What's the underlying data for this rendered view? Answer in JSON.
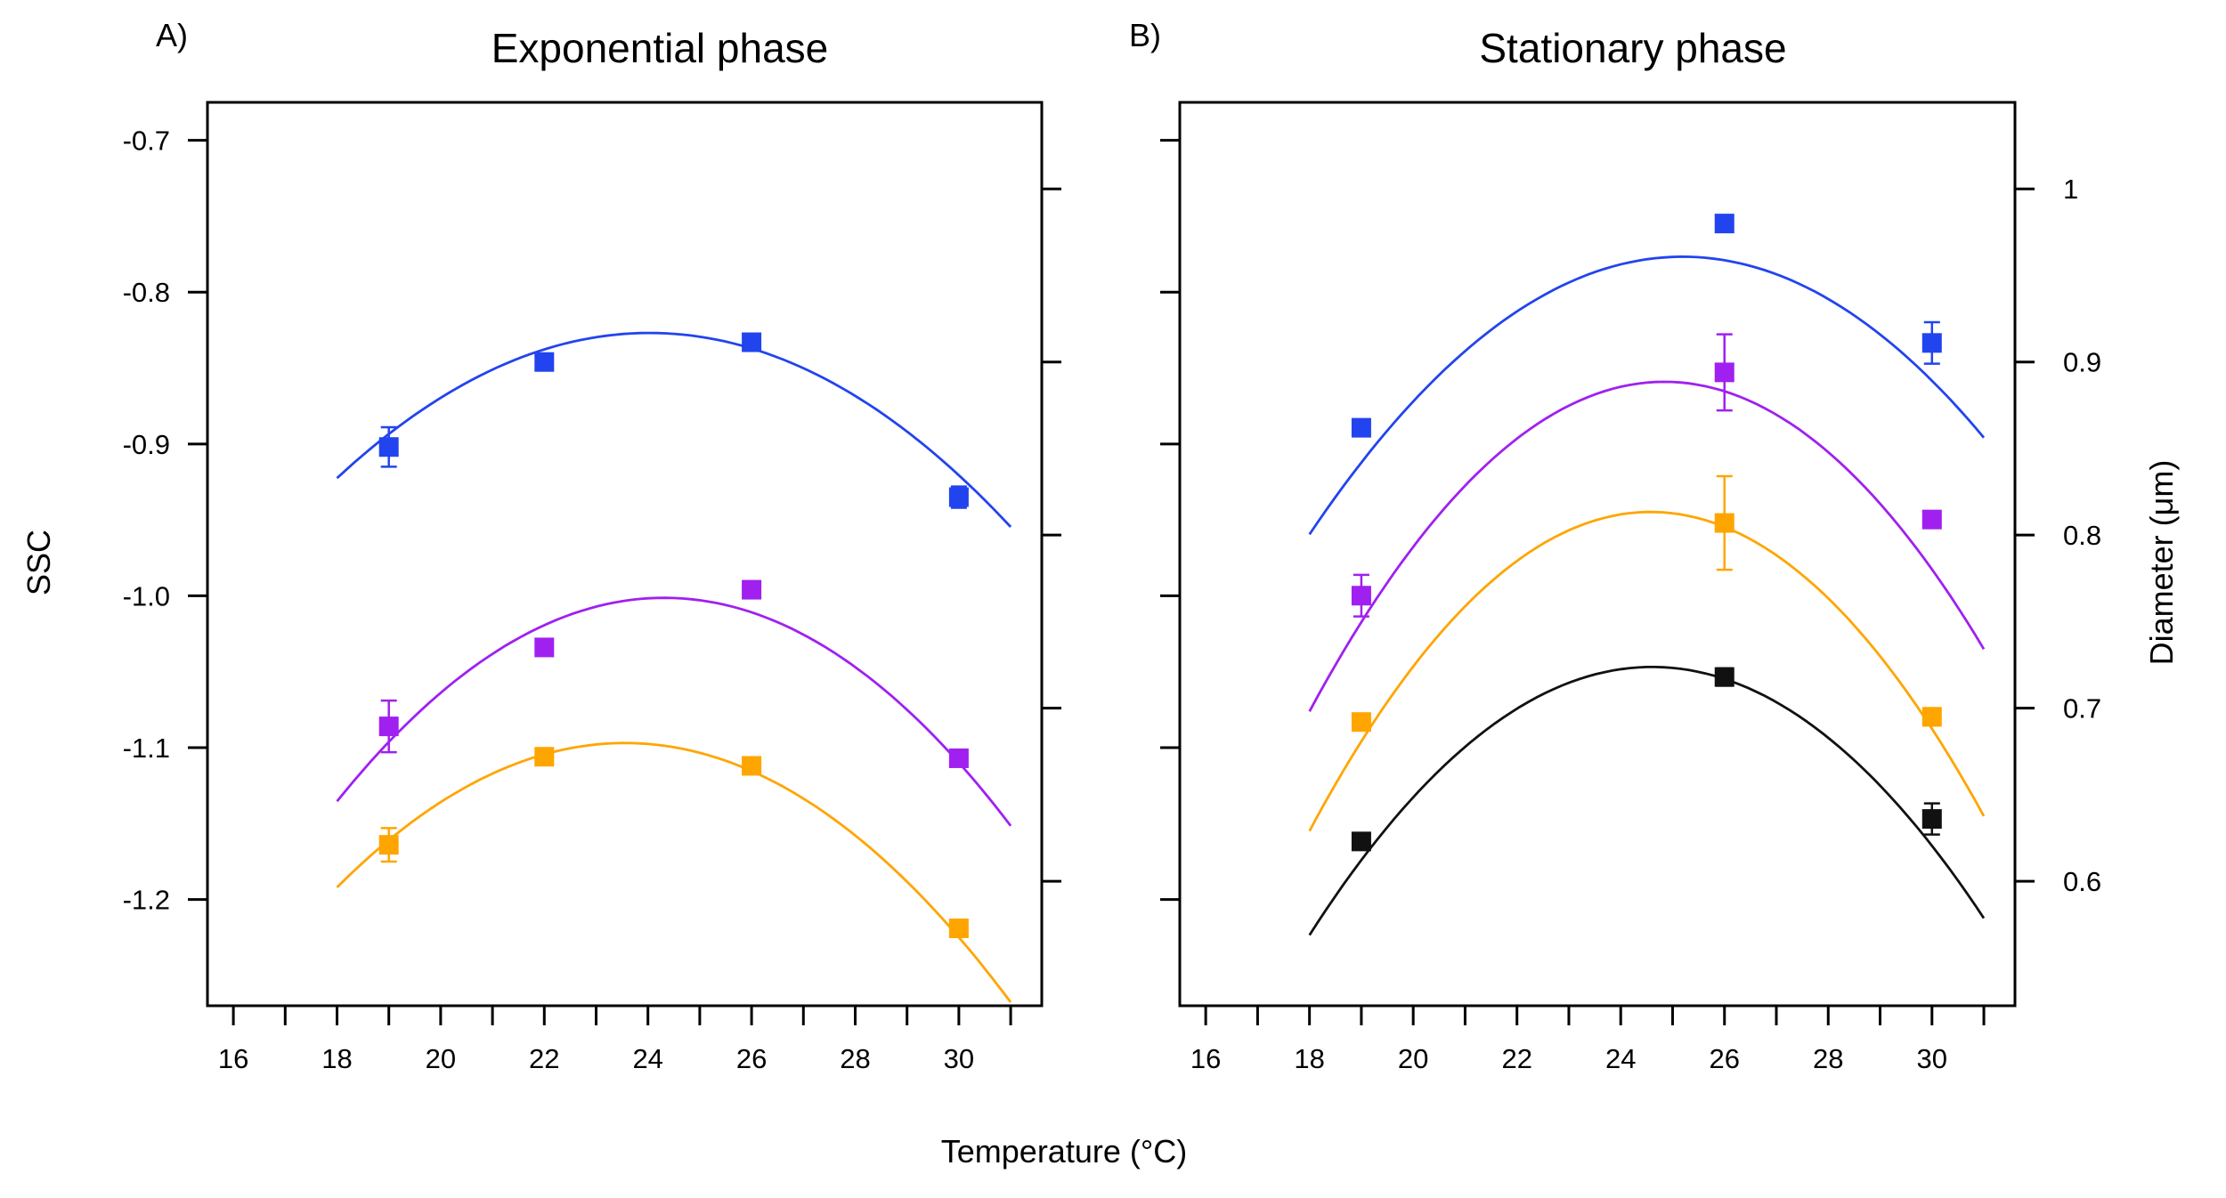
{
  "figure": {
    "xlabel": "Temperature (°C)",
    "ylabel_left": "SSC",
    "ylabel_right": "Diameter (μm)"
  },
  "chart_data": [
    {
      "type": "scatter",
      "panel_label": "A)",
      "title": "Exponential phase",
      "xlabel": "Temperature (°C)",
      "ylabel": "SSC",
      "y2label": "Diameter (μm)",
      "xlim": [
        15.5,
        31.6
      ],
      "ylim": [
        -1.27,
        -0.675
      ],
      "x_ticks": [
        16,
        17,
        18,
        19,
        20,
        21,
        22,
        23,
        24,
        25,
        26,
        27,
        28,
        29,
        30,
        31
      ],
      "x_tick_labels": [
        "16",
        "",
        "18",
        "",
        "20",
        "",
        "22",
        "",
        "24",
        "",
        "26",
        "",
        "28",
        "",
        "30",
        ""
      ],
      "y_ticks": [
        -0.7,
        -0.8,
        -0.9,
        -1.0,
        -1.1,
        -1.2
      ],
      "y_tick_labels": [
        "-0.7",
        "-0.8",
        "-0.9",
        "-1.0",
        "-1.1",
        "-1.2"
      ],
      "y2_ticks": [
        -0.732,
        -0.846,
        -0.96,
        -1.074,
        -1.188
      ],
      "y2_tick_labels": [
        "",
        "",
        "",
        "",
        ""
      ],
      "grid": false,
      "legend": false,
      "fit": "quadratic",
      "fit_xlim": [
        18,
        31
      ],
      "series": [
        {
          "color": "#2244ee",
          "x": [
            19,
            22,
            26,
            30
          ],
          "y": [
            -0.902,
            -0.846,
            -0.833,
            -0.935
          ],
          "err": [
            0.013,
            0.004,
            0.004,
            0.007
          ],
          "fit_coef": [
            -0.00263,
            0.1264,
            -2.3456
          ]
        },
        {
          "color": "#a020f0",
          "x": [
            19,
            22,
            26,
            30
          ],
          "y": [
            -1.086,
            -1.034,
            -0.996,
            -1.107
          ],
          "err": [
            0.017,
            0.002,
            0.002,
            0.003
          ],
          "fit_coef": [
            -0.00336,
            0.1634,
            -2.9879
          ]
        },
        {
          "color": "#ffa500",
          "x": [
            19,
            22,
            26,
            30
          ],
          "y": [
            -1.164,
            -1.106,
            -1.112,
            -1.219
          ],
          "err": [
            0.011,
            0.002,
            0.002,
            0.002
          ],
          "fit_coef": [
            -0.00308,
            0.1451,
            -2.8059
          ]
        }
      ]
    },
    {
      "type": "scatter",
      "panel_label": "B)",
      "title": "Stationary phase",
      "xlabel": "Temperature (°C)",
      "ylabel": "SSC",
      "y2label": "Diameter (μm)",
      "xlim": [
        15.5,
        31.6
      ],
      "ylim": [
        -1.27,
        -0.675
      ],
      "x_ticks": [
        16,
        17,
        18,
        19,
        20,
        21,
        22,
        23,
        24,
        25,
        26,
        27,
        28,
        29,
        30,
        31
      ],
      "x_tick_labels": [
        "16",
        "",
        "18",
        "",
        "20",
        "",
        "22",
        "",
        "24",
        "",
        "26",
        "",
        "28",
        "",
        "30",
        ""
      ],
      "y_ticks": [
        -0.7,
        -0.8,
        -0.9,
        -1.0,
        -1.1,
        -1.2
      ],
      "y_tick_labels": [
        "",
        "",
        "",
        "",
        "",
        ""
      ],
      "y2_ticks": [
        -0.732,
        -0.846,
        -0.96,
        -1.074,
        -1.188
      ],
      "y2_tick_labels": [
        "1",
        "0.9",
        "0.8",
        "0.7",
        "0.6"
      ],
      "grid": false,
      "legend": false,
      "fit": "quadratic",
      "fit_xlim": [
        18,
        31
      ],
      "series": [
        {
          "color": "#2244ee",
          "x": [
            19,
            26,
            30
          ],
          "y": [
            0.862,
            0.98,
            0.911
          ],
          "err": [
            0.004,
            0.003,
            0.012
          ],
          "fit_coef": [
            -0.0031,
            0.1562,
            -1.0068
          ],
          "axis": "right"
        },
        {
          "color": "#a020f0",
          "x": [
            19,
            26,
            30
          ],
          "y": [
            0.765,
            0.894,
            0.809
          ],
          "err": [
            0.012,
            0.022,
            0.002
          ],
          "fit_coef": [
            -0.00407,
            0.2022,
            -1.6228
          ],
          "axis": "right"
        },
        {
          "color": "#ffa500",
          "x": [
            19,
            26,
            30
          ],
          "y": [
            0.692,
            0.807,
            0.695
          ],
          "err": [
            0.004,
            0.027,
            0.005
          ],
          "fit_coef": [
            -0.00426,
            0.2094,
            -1.7599
          ],
          "axis": "right"
        },
        {
          "color": "#111111",
          "x": [
            19,
            26,
            30
          ],
          "y": [
            0.623,
            0.718,
            0.636
          ],
          "err": [
            0.002,
            0.005,
            0.009
          ],
          "fit_coef": [
            -0.00355,
            0.1747,
            -1.4255
          ],
          "axis": "right"
        }
      ]
    }
  ]
}
